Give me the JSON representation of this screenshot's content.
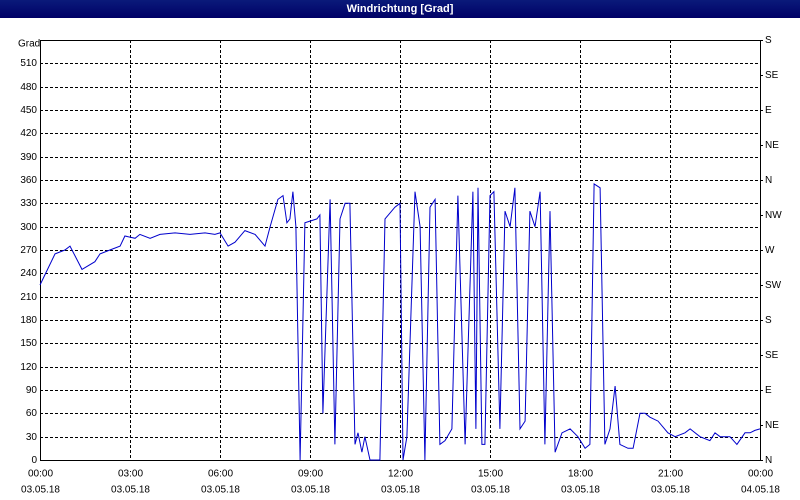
{
  "chart_data": {
    "type": "line",
    "title": "Windrichtung [Grad]",
    "ylabel": "Grad",
    "x": [
      0,
      0.5,
      0.83,
      1,
      1.4,
      1.83,
      2,
      2.33,
      2.67,
      2.83,
      3.17,
      3.33,
      3.67,
      4,
      4.5,
      5,
      5.5,
      5.83,
      6,
      6.27,
      6.5,
      6.83,
      7.17,
      7.5,
      7.67,
      7.93,
      8.1,
      8.23,
      8.33,
      8.43,
      8.53,
      8.67,
      8.83,
      9.23,
      9.33,
      9.43,
      9.67,
      9.83,
      10,
      10.17,
      10.33,
      10.5,
      10.6,
      10.73,
      10.83,
      11,
      11.33,
      11.5,
      11.83,
      12,
      12.1,
      12.23,
      12.5,
      12.67,
      12.83,
      13,
      13.17,
      13.33,
      13.5,
      13.73,
      13.93,
      14.17,
      14.43,
      14.53,
      14.6,
      14.73,
      14.83,
      15,
      15.13,
      15.33,
      15.5,
      15.67,
      15.83,
      16,
      16.17,
      16.33,
      16.5,
      16.67,
      16.83,
      17,
      17.17,
      17.4,
      17.67,
      17.93,
      18.17,
      18.33,
      18.47,
      18.67,
      18.83,
      19,
      19.17,
      19.33,
      19.6,
      19.77,
      20,
      20.17,
      20.33,
      20.6,
      20.93,
      21.17,
      21.5,
      21.67,
      22,
      22.33,
      22.5,
      22.67,
      23,
      23.23,
      23.5,
      23.67,
      23.83,
      24
    ],
    "series": [
      {
        "name": "Windrichtung",
        "color": "#0000cc",
        "values": [
          225,
          265,
          270,
          275,
          245,
          255,
          265,
          270,
          275,
          288,
          285,
          290,
          285,
          290,
          292,
          290,
          292,
          290,
          292,
          275,
          280,
          295,
          290,
          275,
          300,
          335,
          340,
          305,
          310,
          345,
          300,
          0,
          305,
          310,
          315,
          60,
          335,
          20,
          310,
          330,
          330,
          20,
          35,
          10,
          30,
          0,
          0,
          310,
          325,
          330,
          0,
          30,
          345,
          300,
          0,
          325,
          335,
          20,
          25,
          40,
          340,
          20,
          345,
          40,
          350,
          20,
          20,
          340,
          345,
          40,
          320,
          300,
          350,
          40,
          50,
          320,
          300,
          345,
          20,
          320,
          10,
          35,
          40,
          30,
          15,
          20,
          355,
          350,
          20,
          40,
          95,
          20,
          15,
          15,
          60,
          60,
          55,
          50,
          35,
          30,
          35,
          40,
          30,
          25,
          35,
          30,
          30,
          20,
          35,
          35,
          38,
          40
        ]
      }
    ],
    "xlim": [
      0,
      24
    ],
    "xticks": [
      {
        "value": 0,
        "label": "00:00"
      },
      {
        "value": 3,
        "label": "03:00"
      },
      {
        "value": 6,
        "label": "06:00"
      },
      {
        "value": 9,
        "label": "09:00"
      },
      {
        "value": 12,
        "label": "12:00"
      },
      {
        "value": 15,
        "label": "15:00"
      },
      {
        "value": 18,
        "label": "18:00"
      },
      {
        "value": 21,
        "label": "21:00"
      },
      {
        "value": 24,
        "label": "00:00"
      }
    ],
    "xtick_dates": [
      "03.05.18",
      "03.05.18",
      "03.05.18",
      "03.05.18",
      "03.05.18",
      "03.05.18",
      "03.05.18",
      "03.05.18",
      "04.05.18"
    ],
    "ylim": [
      0,
      540
    ],
    "yticks": [
      0,
      30,
      60,
      90,
      120,
      150,
      180,
      210,
      240,
      270,
      300,
      330,
      360,
      390,
      420,
      450,
      480,
      510
    ],
    "y2lim": [
      0,
      540
    ],
    "y2ticks": [
      {
        "value": 0,
        "label": "N"
      },
      {
        "value": 45,
        "label": "NE"
      },
      {
        "value": 90,
        "label": "E"
      },
      {
        "value": 135,
        "label": "SE"
      },
      {
        "value": 180,
        "label": "S"
      },
      {
        "value": 225,
        "label": "SW"
      },
      {
        "value": 270,
        "label": "W"
      },
      {
        "value": 315,
        "label": "NW"
      },
      {
        "value": 360,
        "label": "N"
      },
      {
        "value": 405,
        "label": "NE"
      },
      {
        "value": 450,
        "label": "E"
      },
      {
        "value": 495,
        "label": "SE"
      },
      {
        "value": 540,
        "label": "S"
      }
    ],
    "grid": true
  }
}
